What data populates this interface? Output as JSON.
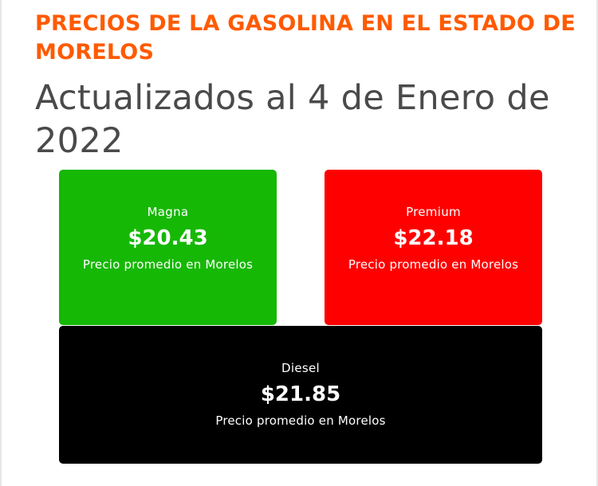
{
  "header": {
    "title": "PRECIOS DE LA GASOLINA EN EL ESTADO DE MORELOS",
    "subtitle": "Actualizados al 4 de Enero de 2022"
  },
  "colors": {
    "title": "#ff5a00",
    "subtitle": "#4a4a4a",
    "magna": "#16b806",
    "premium": "#ff0000",
    "diesel": "#000000"
  },
  "fuels": {
    "magna": {
      "name": "Magna",
      "price": "$20.43",
      "description": "Precio promedio en Morelos"
    },
    "premium": {
      "name": "Premium",
      "price": "$22.18",
      "description": "Precio promedio en Morelos"
    },
    "diesel": {
      "name": "Diesel",
      "price": "$21.85",
      "description": "Precio promedio en Morelos"
    }
  }
}
